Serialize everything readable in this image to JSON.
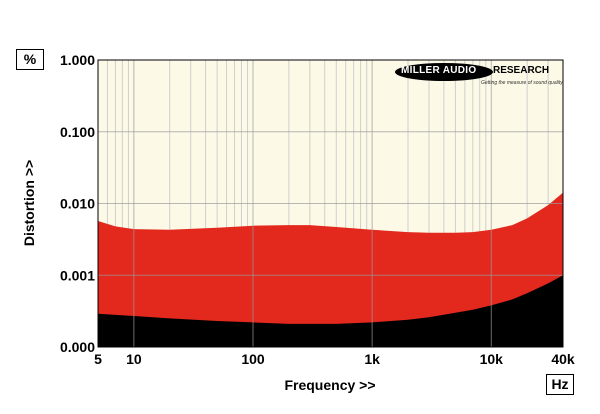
{
  "units": {
    "y": "%",
    "x": "Hz"
  },
  "logo": {
    "word1": "MILLER AUDIO",
    "word2": "RESEARCH",
    "tagline": "Getting the measure of sound quality"
  },
  "chart_data": {
    "type": "area",
    "xlabel": "Frequency >>",
    "ylabel": "Distortion >>",
    "x_scale": "log",
    "y_scale": "log",
    "xlim": [
      5,
      40000
    ],
    "ylim": [
      0.0001,
      1
    ],
    "x_ticks": [
      {
        "value": 5,
        "label": "5"
      },
      {
        "value": 10,
        "label": "10"
      },
      {
        "value": 100,
        "label": "100"
      },
      {
        "value": 1000,
        "label": "1k"
      },
      {
        "value": 10000,
        "label": "10k"
      },
      {
        "value": 40000,
        "label": "40k"
      }
    ],
    "y_ticks": [
      {
        "value": 0.0001,
        "label": "0.000"
      },
      {
        "value": 0.001,
        "label": "0.001"
      },
      {
        "value": 0.01,
        "label": "0.010"
      },
      {
        "value": 0.1,
        "label": "0.100"
      },
      {
        "value": 1,
        "label": "1.000"
      }
    ],
    "grid": true,
    "colors": {
      "background": "#fcf9e6",
      "upper_band": "#e3281e",
      "lower_band": "#000000",
      "grid": "#cfcfcf"
    },
    "series": [
      {
        "color": "#e3281e",
        "x": [
          5,
          7,
          10,
          20,
          50,
          100,
          200,
          300,
          500,
          1000,
          2000,
          3000,
          5000,
          7000,
          10000,
          15000,
          20000,
          30000,
          40000
        ],
        "y": [
          0.0057,
          0.0048,
          0.0044,
          0.0043,
          0.0046,
          0.0049,
          0.005,
          0.005,
          0.0047,
          0.0043,
          0.004,
          0.0039,
          0.0039,
          0.004,
          0.0043,
          0.005,
          0.0062,
          0.0095,
          0.0142
        ]
      },
      {
        "color": "#000000",
        "x": [
          5,
          7,
          10,
          20,
          50,
          100,
          200,
          300,
          500,
          1000,
          2000,
          3000,
          5000,
          7000,
          10000,
          15000,
          20000,
          30000,
          40000
        ],
        "y": [
          0.00029,
          0.00028,
          0.00027,
          0.00025,
          0.00023,
          0.00022,
          0.00021,
          0.00021,
          0.00021,
          0.00022,
          0.00024,
          0.00026,
          0.0003,
          0.00033,
          0.00038,
          0.00046,
          0.00056,
          0.00077,
          0.001
        ]
      }
    ]
  }
}
